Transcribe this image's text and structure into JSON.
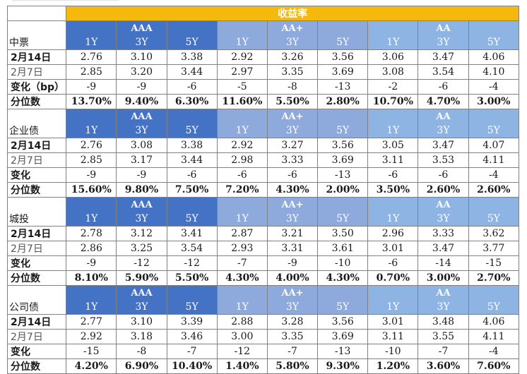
{
  "title": "收益率",
  "groups": [
    "AAA",
    "AA+",
    "AA"
  ],
  "tenors": [
    "1Y",
    "3Y",
    "5Y"
  ],
  "sections": [
    {
      "name": "中票",
      "rows": [
        {
          "label": "2月14日",
          "values": [
            "2.76",
            "3.10",
            "3.38",
            "2.92",
            "3.26",
            "3.56",
            "3.06",
            "3.47",
            "4.06"
          ]
        },
        {
          "label": "2月7日",
          "values": [
            "2.85",
            "3.20",
            "3.44",
            "2.97",
            "3.35",
            "3.69",
            "3.08",
            "3.54",
            "4.10"
          ]
        },
        {
          "label": "变化（bp）",
          "values": [
            "-9",
            "-9",
            "-6",
            "-5",
            "-8",
            "-13",
            "-2",
            "-6",
            "-4"
          ]
        },
        {
          "label": "分位数",
          "values": [
            "13.70%",
            "9.40%",
            "6.30%",
            "11.60%",
            "5.50%",
            "2.80%",
            "10.70%",
            "4.70%",
            "3.00%"
          ]
        }
      ]
    },
    {
      "name": "企业债",
      "rows": [
        {
          "label": "2月14日",
          "values": [
            "2.76",
            "3.08",
            "3.38",
            "2.92",
            "3.27",
            "3.56",
            "3.05",
            "3.47",
            "4.07"
          ]
        },
        {
          "label": "2月7日",
          "values": [
            "2.85",
            "3.17",
            "3.44",
            "2.98",
            "3.33",
            "3.69",
            "3.11",
            "3.53",
            "4.11"
          ]
        },
        {
          "label": "变化",
          "values": [
            "-9",
            "-9",
            "-6",
            "-6",
            "-6",
            "-13",
            "-6",
            "-6",
            "-4"
          ]
        },
        {
          "label": "分位数",
          "values": [
            "15.60%",
            "9.80%",
            "7.50%",
            "7.20%",
            "4.30%",
            "2.00%",
            "3.50%",
            "2.60%",
            "2.60%"
          ]
        }
      ]
    },
    {
      "name": "城投",
      "rows": [
        {
          "label": "2月14日",
          "values": [
            "2.78",
            "3.12",
            "3.41",
            "2.87",
            "3.21",
            "3.50",
            "2.96",
            "3.33",
            "3.62"
          ]
        },
        {
          "label": "2月7日",
          "values": [
            "2.86",
            "3.25",
            "3.54",
            "2.93",
            "3.31",
            "3.61",
            "3.01",
            "3.47",
            "3.77"
          ]
        },
        {
          "label": "变化",
          "values": [
            "-9",
            "-12",
            "-12",
            "-7",
            "-9",
            "-10",
            "-6",
            "-14",
            "-15"
          ]
        },
        {
          "label": "分位数",
          "values": [
            "8.10%",
            "5.90%",
            "5.50%",
            "4.30%",
            "4.00%",
            "4.30%",
            "0.70%",
            "3.00%",
            "2.70%"
          ]
        }
      ]
    },
    {
      "name": "公司债",
      "rows": [
        {
          "label": "2月14日",
          "values": [
            "2.77",
            "3.10",
            "3.39",
            "2.88",
            "3.28",
            "3.56",
            "3.01",
            "3.48",
            "4.06"
          ]
        },
        {
          "label": "2月7日",
          "values": [
            "2.92",
            "3.18",
            "3.46",
            "3.00",
            "3.35",
            "3.69",
            "3.11",
            "3.55",
            "4.11"
          ]
        },
        {
          "label": "变化",
          "values": [
            "-15",
            "-8",
            "-7",
            "-12",
            "-7",
            "-13",
            "-10",
            "-7",
            "-4"
          ]
        },
        {
          "label": "分位数",
          "values": [
            "4.20%",
            "6.90%",
            "10.40%",
            "1.40%",
            "5.80%",
            "9.30%",
            "1.20%",
            "3.60%",
            "7.60%"
          ]
        }
      ]
    }
  ]
}
